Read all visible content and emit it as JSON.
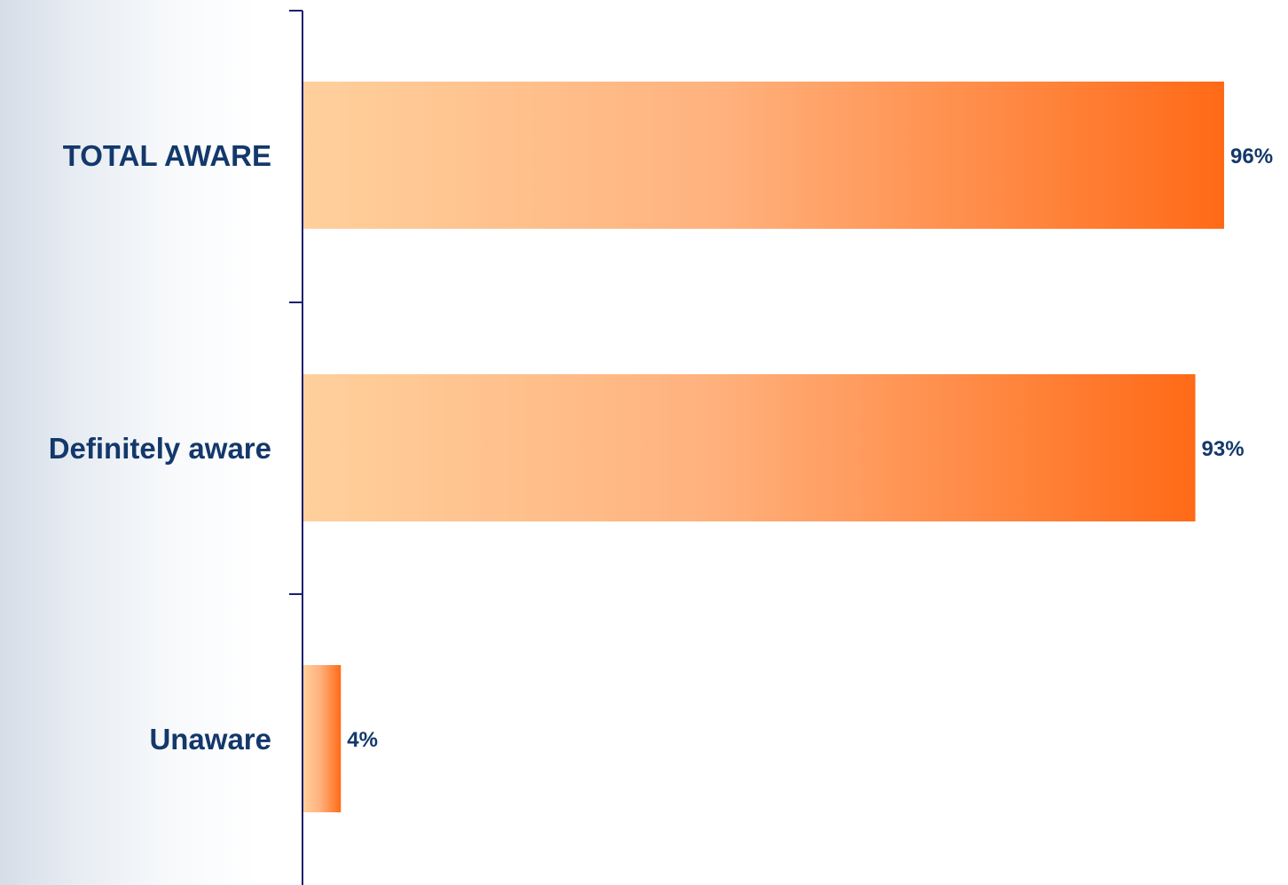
{
  "chart_data": {
    "type": "bar",
    "orientation": "horizontal",
    "categories": [
      "TOTAL AWARE",
      "Definitely aware",
      "Unaware"
    ],
    "values": [
      96,
      93,
      4
    ],
    "value_labels": [
      "96%",
      "93%",
      "4%"
    ],
    "unit": "%",
    "xlim": [
      0,
      100
    ],
    "title": "",
    "xlabel": "",
    "ylabel": "",
    "grid": false,
    "legend": "none",
    "colors": {
      "bar_start": "#ffd09c",
      "bar_mid": "#ffb27e",
      "bar_end": "#ff6a17",
      "label": "#13386b",
      "axis": "#1b1f6e"
    }
  }
}
